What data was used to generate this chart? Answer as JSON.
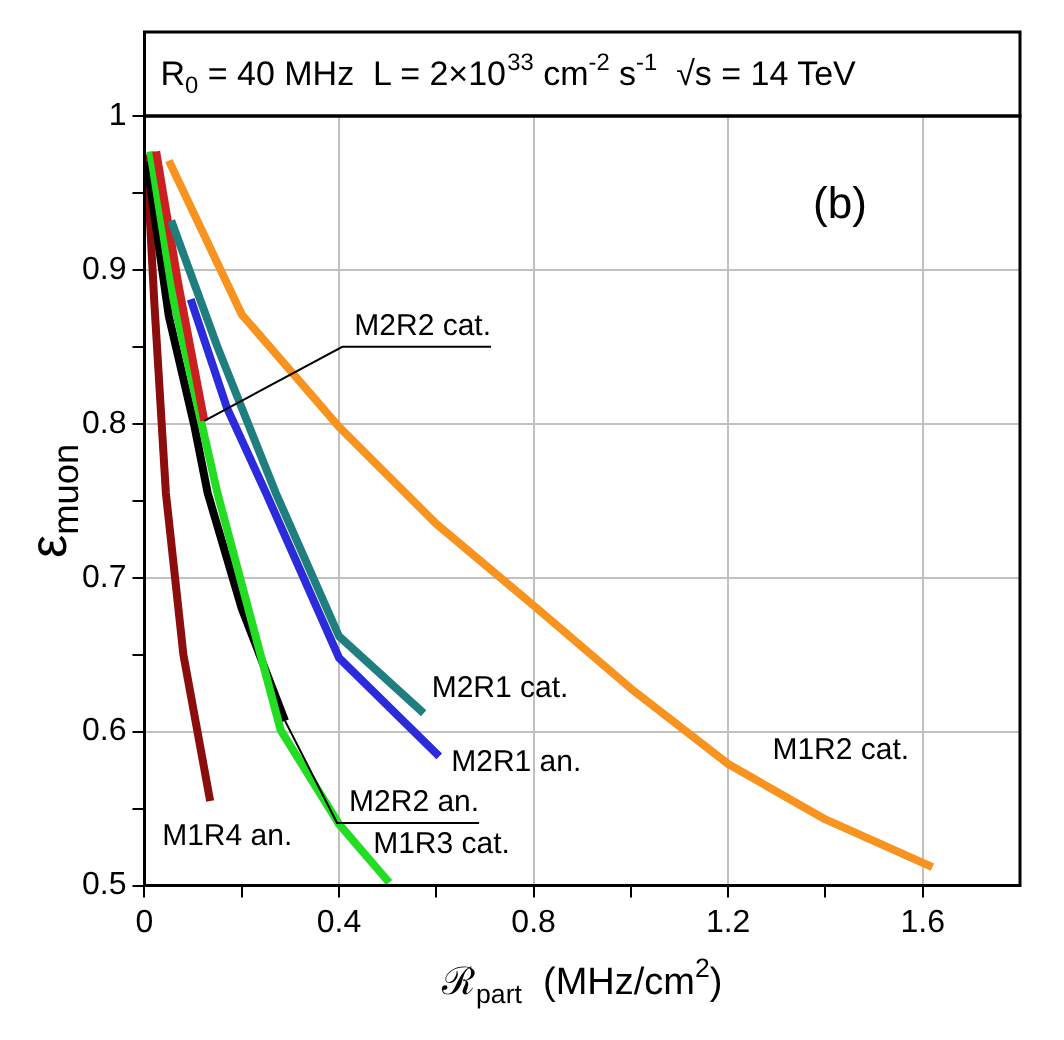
{
  "chart_data": {
    "type": "line",
    "title": "R$_{0}$ = 40 MHz  L = 2×10$^{33}$ cm$^{-2}$ s$^{-1}$  √s = 14 TeV",
    "xlabel": "ℛ$_{part}$  (MHz/cm$^{2}$)",
    "ylabel": "ε$_{muon}$",
    "xlim": [
      0,
      1.8
    ],
    "xticks": [
      0,
      {
        "value": 0.2,
        "label": null
      },
      0.4,
      {
        "value": 0.6,
        "label": null
      },
      0.8,
      {
        "value": 1.0,
        "label": null
      },
      1.2,
      {
        "value": 1.4,
        "label": null
      },
      1.6
    ],
    "ylim": [
      0.5,
      1
    ],
    "yticks": [
      0.5,
      {
        "value": 0.55,
        "label": null
      },
      0.6,
      {
        "value": 0.65,
        "label": null
      },
      0.7,
      {
        "value": 0.75,
        "label": null
      },
      0.8,
      {
        "value": 0.85,
        "label": null
      },
      0.9,
      {
        "value": 0.95,
        "label": null
      },
      1
    ],
    "grid": true,
    "marker": "none",
    "line_style": "solid",
    "annotations": [
      "(b)"
    ],
    "series": [
      {
        "name": "M1R2 cat.",
        "color": "#f7931e",
        "x": [
          0.05,
          0.2,
          0.4,
          0.6,
          0.8,
          1.0,
          1.2,
          1.4,
          1.62
        ],
        "values": [
          0.971,
          0.871,
          0.798,
          0.735,
          0.682,
          0.628,
          0.579,
          0.543,
          0.512
        ]
      },
      {
        "name": "M2R1 cat.",
        "color": "#1f7f7f",
        "x": [
          0.055,
          0.15,
          0.27,
          0.4,
          0.574
        ],
        "values": [
          0.932,
          0.85,
          0.755,
          0.662,
          0.612
        ]
      },
      {
        "name": "M2R1 an.",
        "color": "#2b2bdc",
        "x": [
          0.095,
          0.17,
          0.25,
          0.4,
          0.606
        ],
        "values": [
          0.881,
          0.81,
          0.755,
          0.648,
          0.584
        ]
      },
      {
        "name": "M2R2 cat.",
        "color": "#cc1f1f",
        "x": [
          0.024,
          0.07,
          0.123
        ],
        "values": [
          0.977,
          0.89,
          0.802
        ]
      },
      {
        "name": "M1R3 cat.",
        "color": "#22dd22",
        "x": [
          0.012,
          0.06,
          0.119,
          0.15,
          0.28,
          0.4,
          0.503
        ],
        "values": [
          0.977,
          0.88,
          0.798,
          0.755,
          0.601,
          0.54,
          0.502
        ]
      },
      {
        "name": "M2R2 an.",
        "color": "#000000",
        "x": [
          0.005,
          0.05,
          0.103,
          0.13,
          0.2,
          0.289
        ],
        "values": [
          0.97,
          0.87,
          0.798,
          0.755,
          0.68,
          0.607
        ]
      },
      {
        "name": "M1R4 an.",
        "color": "#8b0d0d",
        "x": [
          0.004,
          0.02,
          0.044,
          0.08,
          0.135
        ],
        "values": [
          0.975,
          0.88,
          0.755,
          0.65,
          0.555
        ]
      }
    ]
  }
}
